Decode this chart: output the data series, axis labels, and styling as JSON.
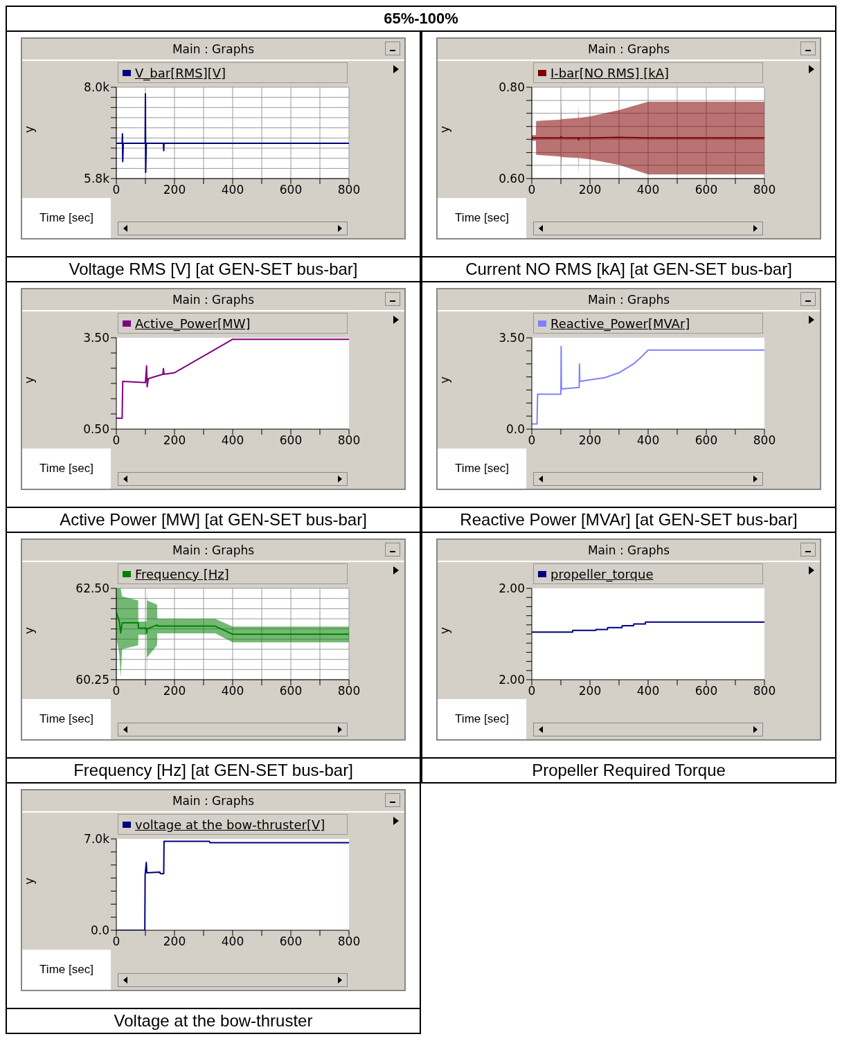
{
  "chart_data": [
    {
      "type": "line",
      "title": "Voltage RMS [V] [at GEN-SET bus-bar]",
      "subtitle": "Main : Graphs",
      "annotations": [
        "65%-100%"
      ],
      "xlabel": "Time [sec]",
      "ylabel": "y",
      "legend": "top",
      "grid": true,
      "x": [
        0,
        20,
        21,
        22,
        24,
        99,
        100,
        101,
        103,
        162,
        163,
        164,
        800
      ],
      "series": [
        {
          "name": "V_bar[RMS][V]",
          "color": "#000080",
          "values": [
            6650,
            6650,
            6880,
            6210,
            6650,
            6650,
            7840,
            5950,
            6650,
            6650,
            6470,
            6650,
            6650
          ]
        }
      ],
      "xlim": [
        0,
        800
      ],
      "xticks": [
        0,
        {
          "value": 100,
          "label": null
        },
        200,
        {
          "value": 300,
          "label": null
        },
        400,
        {
          "value": 500,
          "label": null
        },
        600,
        {
          "value": 700,
          "label": null
        },
        800
      ],
      "ylim": [
        5800,
        8000
      ],
      "yticks": [
        {
          "value": 5800,
          "label": "5.8k"
        },
        {
          "value": 6044,
          "label": null
        },
        {
          "value": 6289,
          "label": null
        },
        {
          "value": 6533,
          "label": null
        },
        {
          "value": 6778,
          "label": null
        },
        {
          "value": 7022,
          "label": null
        },
        {
          "value": 7267,
          "label": null
        },
        {
          "value": 7511,
          "label": null
        },
        {
          "value": 7756,
          "label": null
        },
        {
          "value": 8000,
          "label": "8.0k"
        }
      ]
    },
    {
      "type": "line",
      "title": "Current NO RMS [kA] [at GEN-SET bus-bar]",
      "subtitle": "Main : Graphs",
      "xlabel": "Time [sec]",
      "ylabel": "y",
      "legend": "top",
      "grid": true,
      "x": [
        0,
        14,
        15,
        100,
        101,
        102,
        160,
        161,
        162,
        200,
        300,
        400,
        800
      ],
      "series": [
        {
          "name": "I-bar[NO RMS] [kA]",
          "color": "#800000",
          "values": [
            0.689,
            0.689,
            0.689,
            0.689,
            0.692,
            0.689,
            0.689,
            0.685,
            0.689,
            0.689,
            0.69,
            0.689,
            0.689
          ],
          "lower": [
            0.683,
            0.683,
            0.652,
            0.648,
            0.608,
            0.647,
            0.645,
            0.61,
            0.645,
            0.642,
            0.63,
            0.609,
            0.609
          ],
          "upper": [
            0.695,
            0.695,
            0.726,
            0.729,
            0.775,
            0.73,
            0.733,
            0.76,
            0.733,
            0.736,
            0.75,
            0.768,
            0.768
          ]
        }
      ],
      "xlim": [
        0,
        800
      ],
      "xticks": [
        0,
        {
          "value": 100,
          "label": null
        },
        200,
        {
          "value": 300,
          "label": null
        },
        400,
        {
          "value": 500,
          "label": null
        },
        600,
        {
          "value": 700,
          "label": null
        },
        800
      ],
      "ylim": [
        0.6,
        0.8
      ],
      "yticks": [
        {
          "value": 0.6,
          "label": "0.60"
        },
        {
          "value": 0.629,
          "label": null
        },
        {
          "value": 0.657,
          "label": null
        },
        {
          "value": 0.686,
          "label": null
        },
        {
          "value": 0.714,
          "label": null
        },
        {
          "value": 0.743,
          "label": null
        },
        {
          "value": 0.771,
          "label": null
        },
        {
          "value": 0.8,
          "label": "0.80"
        }
      ]
    },
    {
      "type": "line",
      "title": "Active Power [MW] [at GEN-SET bus-bar]",
      "subtitle": "Main : Graphs",
      "xlabel": "Time [sec]",
      "ylabel": "y",
      "legend": "top",
      "x": [
        0,
        20,
        22,
        100,
        104,
        106,
        110,
        160,
        162,
        164,
        200,
        400,
        800
      ],
      "series": [
        {
          "name": "Active_Power[MW]",
          "color": "#800080",
          "values": [
            0.86,
            0.86,
            2.07,
            2.03,
            2.58,
            1.89,
            2.16,
            2.3,
            2.49,
            2.3,
            2.35,
            3.45,
            3.45
          ]
        }
      ],
      "xlim": [
        0,
        800
      ],
      "xticks": [
        0,
        {
          "value": 100,
          "label": null
        },
        200,
        {
          "value": 300,
          "label": null
        },
        400,
        {
          "value": 500,
          "label": null
        },
        600,
        {
          "value": 700,
          "label": null
        },
        800
      ],
      "ylim": [
        0.5,
        3.5
      ],
      "yticks": [
        {
          "value": 0.5,
          "label": "0.50"
        },
        {
          "value": 1,
          "label": null
        },
        {
          "value": 1.5,
          "label": null
        },
        {
          "value": 2,
          "label": null
        },
        {
          "value": 2.5,
          "label": null
        },
        {
          "value": 3,
          "label": null
        },
        {
          "value": 3.5,
          "label": "3.50"
        }
      ]
    },
    {
      "type": "line",
      "title": "Reactive Power [MVAr] [at GEN-SET bus-bar]",
      "subtitle": "Main : Graphs",
      "xlabel": "Time [sec]",
      "ylabel": "y",
      "legend": "top",
      "x": [
        0,
        18,
        20,
        100,
        101,
        102,
        163,
        164,
        165,
        200,
        250,
        300,
        350,
        380,
        400,
        800
      ],
      "series": [
        {
          "name": "Reactive_Power[MVAr]",
          "color": "#8080ff",
          "values": [
            0.2,
            0.2,
            1.34,
            1.34,
            3.17,
            1.54,
            1.6,
            2.5,
            1.83,
            1.89,
            1.97,
            2.16,
            2.5,
            2.8,
            3.03,
            3.03
          ]
        }
      ],
      "xlim": [
        0,
        800
      ],
      "xticks": [
        0,
        {
          "value": 100,
          "label": null
        },
        200,
        {
          "value": 300,
          "label": null
        },
        400,
        {
          "value": 500,
          "label": null
        },
        600,
        {
          "value": 700,
          "label": null
        },
        800
      ],
      "ylim": [
        0,
        3.5
      ],
      "yticks": [
        {
          "value": 0,
          "label": "0.0"
        },
        {
          "value": 0.5,
          "label": null
        },
        {
          "value": 1,
          "label": null
        },
        {
          "value": 1.5,
          "label": null
        },
        {
          "value": 2,
          "label": null
        },
        {
          "value": 2.5,
          "label": null
        },
        {
          "value": 3,
          "label": null
        },
        {
          "value": 3.5,
          "label": "3.50"
        }
      ]
    },
    {
      "type": "line",
      "title": "Frequency [Hz] [at GEN-SET bus-bar]",
      "subtitle": "Main : Graphs",
      "xlabel": "Time [sec]",
      "ylabel": "y",
      "legend": "top",
      "grid": true,
      "x": [
        0,
        10,
        15,
        20,
        75,
        76,
        104,
        105,
        106,
        140,
        141,
        340,
        400,
        800
      ],
      "series": [
        {
          "name": "Frequency [Hz]",
          "color": "#008000",
          "values": [
            61.9,
            61.7,
            61.4,
            61.65,
            61.65,
            61.52,
            61.52,
            61.4,
            61.5,
            61.6,
            61.57,
            61.57,
            61.37,
            61.37
          ],
          "lower": [
            61.3,
            60.9,
            60.3,
            61.0,
            61.1,
            61.36,
            61.36,
            60.35,
            60.8,
            61.1,
            61.39,
            61.39,
            61.17,
            61.17
          ],
          "upper": [
            62.5,
            62.5,
            62.5,
            62.3,
            62.2,
            61.68,
            61.68,
            62.45,
            62.2,
            62.1,
            61.75,
            61.75,
            61.56,
            61.56
          ]
        }
      ],
      "xlim": [
        0,
        800
      ],
      "xticks": [
        0,
        {
          "value": 100,
          "label": null
        },
        200,
        {
          "value": 300,
          "label": null
        },
        400,
        {
          "value": 500,
          "label": null
        },
        600,
        {
          "value": 700,
          "label": null
        },
        800
      ],
      "ylim": [
        60.25,
        62.5
      ],
      "yticks": [
        {
          "value": 60.25,
          "label": "60.25"
        },
        {
          "value": 60.5,
          "label": null
        },
        {
          "value": 60.75,
          "label": null
        },
        {
          "value": 61,
          "label": null
        },
        {
          "value": 61.25,
          "label": null
        },
        {
          "value": 61.5,
          "label": null
        },
        {
          "value": 61.75,
          "label": null
        },
        {
          "value": 62,
          "label": null
        },
        {
          "value": 62.25,
          "label": null
        },
        {
          "value": 62.5,
          "label": "62.50"
        }
      ]
    },
    {
      "type": "line",
      "title": "Propeller Required Torque",
      "subtitle": "Main : Graphs",
      "xlabel": "Time [sec]",
      "ylabel": "y",
      "legend": "top",
      "x": [
        0,
        140,
        141,
        220,
        221,
        260,
        261,
        310,
        311,
        350,
        351,
        390,
        391,
        800
      ],
      "series": [
        {
          "name": "propeller_torque",
          "color": "#000080",
          "values": [
            2.0002,
            2.0002,
            2.0004,
            2.0004,
            2.0005,
            2.0005,
            2.0007,
            2.0007,
            2.0009,
            2.0009,
            2.0011,
            2.0011,
            2.0013,
            2.0013
          ]
        }
      ],
      "xlim": [
        0,
        800
      ],
      "xticks": [
        0,
        {
          "value": 100,
          "label": null
        },
        200,
        {
          "value": 300,
          "label": null
        },
        400,
        {
          "value": 500,
          "label": null
        },
        600,
        {
          "value": 700,
          "label": null
        },
        800
      ],
      "ylim": [
        1.995,
        2.005
      ],
      "yticks": [
        {
          "value": 1.995,
          "label": "2.00"
        },
        {
          "value": 1.996,
          "label": null
        },
        {
          "value": 1.997,
          "label": null
        },
        {
          "value": 1.998,
          "label": null
        },
        {
          "value": 1.999,
          "label": null
        },
        {
          "value": 2,
          "label": null
        },
        {
          "value": 2.001,
          "label": null
        },
        {
          "value": 2.002,
          "label": null
        },
        {
          "value": 2.003,
          "label": null
        },
        {
          "value": 2.004,
          "label": null
        },
        {
          "value": 2.005,
          "label": "2.00"
        }
      ]
    },
    {
      "type": "line",
      "title": "Voltage at the bow-thruster",
      "subtitle": "Main : Graphs",
      "xlabel": "Time [sec]",
      "ylabel": "y",
      "legend": "top",
      "x": [
        0,
        98,
        99,
        103,
        105,
        150,
        151,
        163,
        164,
        320,
        322,
        800
      ],
      "series": [
        {
          "name": "voltage at the bow-thruster[V]",
          "color": "#000080",
          "values": [
            0,
            0,
            4230,
            5200,
            4400,
            4460,
            4340,
            4340,
            6820,
            6820,
            6710,
            6710
          ]
        }
      ],
      "xlim": [
        0,
        800
      ],
      "xticks": [
        0,
        {
          "value": 100,
          "label": null
        },
        200,
        {
          "value": 300,
          "label": null
        },
        400,
        {
          "value": 500,
          "label": null
        },
        600,
        {
          "value": 700,
          "label": null
        },
        800
      ],
      "ylim": [
        0,
        7000
      ],
      "yticks": [
        {
          "value": 0,
          "label": "0.0"
        },
        {
          "value": 1000,
          "label": null
        },
        {
          "value": 2000,
          "label": null
        },
        {
          "value": 3000,
          "label": null
        },
        {
          "value": 4000,
          "label": null
        },
        {
          "value": 5000,
          "label": null
        },
        {
          "value": 6000,
          "label": null
        },
        {
          "value": 7000,
          "label": "7.0k"
        }
      ]
    }
  ]
}
